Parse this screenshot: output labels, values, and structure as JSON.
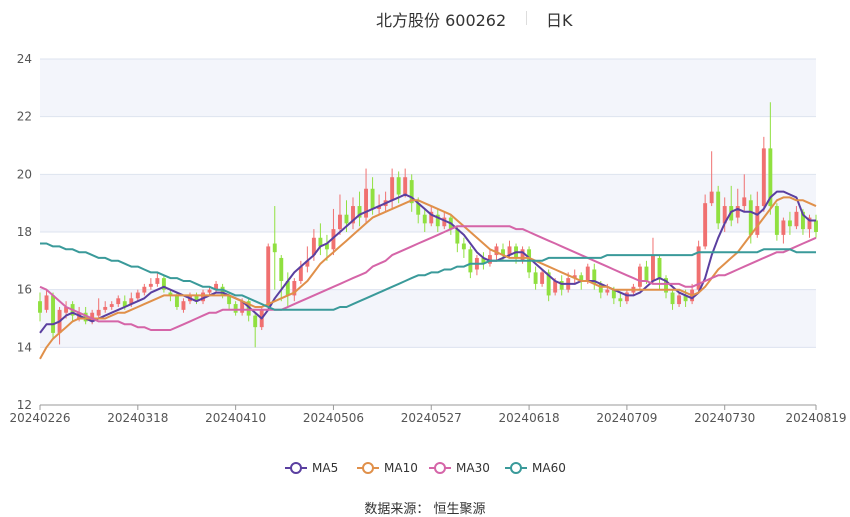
{
  "header": {
    "title": "北方股份 600262",
    "period": "日K"
  },
  "source_text": "数据来源：  恒生聚源",
  "colors": {
    "up": "#f07070",
    "down": "#90e040",
    "MA5": "#5a3fa0",
    "MA10": "#e0904a",
    "MA30": "#d565a8",
    "MA60": "#3a9a9a",
    "plot_band": "#f3f5fb",
    "grid": "#dde3ef"
  },
  "chart_data": {
    "type": "candlestick",
    "title": "北方股份 600262",
    "period": "日K",
    "ylim": [
      12,
      24
    ],
    "yticks": [
      "12",
      "14",
      "16",
      "18",
      "20",
      "22",
      "24"
    ],
    "xticks": [
      {
        "index": 0,
        "label": "20240226"
      },
      {
        "index": 15,
        "label": "20240318"
      },
      {
        "index": 30,
        "label": "20240410"
      },
      {
        "index": 45,
        "label": "20240506"
      },
      {
        "index": 60,
        "label": "20240527"
      },
      {
        "index": 75,
        "label": "20240618"
      },
      {
        "index": 90,
        "label": "20240709"
      },
      {
        "index": 105,
        "label": "20240730"
      },
      {
        "index": 119,
        "label": "20240819"
      }
    ],
    "candles": [
      [
        15.6,
        15.2,
        15.9,
        14.9
      ],
      [
        15.3,
        15.8,
        16.0,
        15.2
      ],
      [
        15.8,
        14.5,
        15.9,
        14.3
      ],
      [
        14.5,
        15.3,
        15.4,
        14.1
      ],
      [
        15.2,
        15.4,
        15.6,
        15.0
      ],
      [
        15.5,
        15.1,
        15.6,
        14.9
      ],
      [
        15.0,
        15.2,
        15.4,
        14.9
      ],
      [
        15.2,
        14.9,
        15.4,
        14.8
      ],
      [
        14.9,
        15.2,
        15.3,
        14.8
      ],
      [
        15.1,
        15.3,
        15.7,
        15.0
      ],
      [
        15.3,
        15.4,
        15.6,
        15.2
      ],
      [
        15.4,
        15.5,
        15.6,
        15.3
      ],
      [
        15.5,
        15.7,
        15.8,
        15.4
      ],
      [
        15.6,
        15.4,
        15.8,
        15.3
      ],
      [
        15.5,
        15.7,
        15.9,
        15.4
      ],
      [
        15.7,
        15.9,
        16.0,
        15.6
      ],
      [
        15.9,
        16.1,
        16.2,
        15.8
      ],
      [
        16.1,
        16.2,
        16.4,
        16.0
      ],
      [
        16.2,
        16.4,
        16.6,
        16.1
      ],
      [
        16.4,
        16.0,
        16.5,
        15.9
      ],
      [
        15.9,
        15.8,
        16.0,
        15.6
      ],
      [
        15.8,
        15.4,
        15.9,
        15.3
      ],
      [
        15.3,
        15.6,
        15.7,
        15.2
      ],
      [
        15.6,
        15.8,
        15.9,
        15.5
      ],
      [
        15.8,
        15.6,
        15.9,
        15.5
      ],
      [
        15.6,
        15.9,
        16.0,
        15.5
      ],
      [
        15.9,
        16.0,
        16.1,
        15.8
      ],
      [
        16.0,
        16.2,
        16.3,
        15.9
      ],
      [
        16.1,
        15.8,
        16.2,
        15.7
      ],
      [
        15.8,
        15.5,
        15.9,
        15.3
      ],
      [
        15.5,
        15.2,
        15.6,
        15.1
      ],
      [
        15.2,
        15.6,
        15.7,
        15.1
      ],
      [
        15.6,
        15.1,
        15.7,
        14.9
      ],
      [
        15.1,
        14.7,
        15.2,
        14.0
      ],
      [
        14.7,
        15.3,
        15.4,
        14.6
      ],
      [
        15.4,
        17.5,
        17.6,
        15.3
      ],
      [
        17.6,
        17.3,
        18.9,
        16.0
      ],
      [
        17.1,
        16.3,
        17.2,
        15.6
      ],
      [
        16.3,
        15.8,
        16.6,
        15.4
      ],
      [
        15.8,
        16.3,
        16.4,
        15.6
      ],
      [
        16.3,
        16.8,
        17.0,
        16.2
      ],
      [
        16.8,
        17.0,
        17.5,
        16.6
      ],
      [
        17.2,
        17.8,
        18.1,
        17.0
      ],
      [
        17.8,
        17.5,
        18.3,
        17.2
      ],
      [
        17.6,
        17.4,
        17.9,
        17.0
      ],
      [
        17.4,
        18.1,
        18.8,
        17.2
      ],
      [
        18.1,
        18.6,
        19.3,
        17.9
      ],
      [
        18.6,
        18.3,
        19.1,
        18.0
      ],
      [
        18.3,
        18.9,
        19.2,
        18.1
      ],
      [
        18.9,
        18.5,
        19.4,
        18.2
      ],
      [
        18.5,
        19.5,
        20.2,
        18.3
      ],
      [
        19.5,
        18.8,
        19.9,
        18.6
      ],
      [
        18.8,
        18.9,
        19.3,
        18.6
      ],
      [
        18.9,
        19.1,
        19.4,
        18.7
      ],
      [
        19.1,
        19.9,
        20.2,
        18.8
      ],
      [
        19.9,
        19.3,
        20.1,
        19.0
      ],
      [
        19.3,
        19.9,
        20.2,
        19.2
      ],
      [
        19.8,
        19.0,
        20.0,
        18.7
      ],
      [
        19.0,
        18.6,
        19.2,
        18.3
      ],
      [
        18.6,
        18.3,
        18.8,
        18.0
      ],
      [
        18.3,
        18.7,
        18.9,
        18.2
      ],
      [
        18.6,
        18.2,
        18.8,
        18.0
      ],
      [
        18.2,
        18.5,
        18.7,
        18.1
      ],
      [
        18.5,
        18.1,
        18.6,
        17.9
      ],
      [
        18.1,
        17.6,
        18.2,
        17.3
      ],
      [
        17.6,
        17.4,
        17.8,
        17.1
      ],
      [
        17.4,
        16.6,
        17.5,
        16.4
      ],
      [
        16.7,
        17.1,
        17.2,
        16.5
      ],
      [
        17.1,
        16.9,
        17.3,
        16.7
      ],
      [
        16.9,
        17.2,
        17.4,
        16.8
      ],
      [
        17.2,
        17.5,
        17.6,
        17.0
      ],
      [
        17.4,
        17.2,
        17.6,
        17.0
      ],
      [
        17.2,
        17.5,
        17.7,
        17.1
      ],
      [
        17.5,
        17.1,
        17.6,
        16.9
      ],
      [
        17.0,
        17.4,
        17.5,
        16.9
      ],
      [
        17.4,
        16.6,
        17.5,
        16.4
      ],
      [
        16.6,
        16.2,
        16.8,
        16.0
      ],
      [
        16.2,
        16.6,
        16.7,
        16.1
      ],
      [
        16.6,
        15.8,
        16.7,
        15.6
      ],
      [
        15.9,
        16.3,
        16.4,
        15.8
      ],
      [
        16.3,
        16.0,
        16.5,
        15.8
      ],
      [
        16.0,
        16.4,
        16.6,
        15.9
      ],
      [
        16.4,
        16.5,
        16.7,
        16.2
      ],
      [
        16.5,
        16.3,
        16.6,
        16.0
      ],
      [
        16.3,
        16.8,
        16.9,
        16.2
      ],
      [
        16.7,
        16.2,
        16.9,
        16.0
      ],
      [
        16.2,
        15.9,
        16.3,
        15.7
      ],
      [
        15.9,
        16.0,
        16.2,
        15.8
      ],
      [
        16.0,
        15.7,
        16.1,
        15.5
      ],
      [
        15.7,
        15.6,
        15.9,
        15.4
      ],
      [
        15.6,
        15.9,
        16.0,
        15.5
      ],
      [
        15.9,
        16.1,
        16.2,
        15.8
      ],
      [
        16.1,
        16.8,
        16.9,
        16.0
      ],
      [
        16.8,
        16.3,
        17.0,
        16.2
      ],
      [
        16.3,
        17.2,
        17.8,
        16.2
      ],
      [
        17.1,
        16.4,
        17.2,
        16.0
      ],
      [
        16.4,
        15.9,
        16.5,
        15.7
      ],
      [
        15.9,
        15.5,
        16.0,
        15.3
      ],
      [
        15.5,
        15.8,
        15.9,
        15.4
      ],
      [
        15.8,
        15.6,
        16.0,
        15.4
      ],
      [
        15.6,
        16.0,
        16.2,
        15.5
      ],
      [
        16.0,
        17.5,
        17.7,
        15.9
      ],
      [
        17.5,
        19.0,
        19.3,
        17.4
      ],
      [
        19.0,
        19.4,
        20.8,
        18.9
      ],
      [
        19.4,
        18.3,
        19.6,
        18.1
      ],
      [
        18.3,
        18.9,
        19.2,
        18.0
      ],
      [
        18.9,
        18.4,
        19.6,
        18.2
      ],
      [
        18.5,
        18.9,
        19.5,
        18.3
      ],
      [
        18.9,
        19.2,
        20.0,
        18.7
      ],
      [
        19.1,
        17.9,
        19.3,
        17.6
      ],
      [
        17.9,
        18.9,
        19.4,
        17.8
      ],
      [
        18.9,
        20.9,
        21.3,
        18.7
      ],
      [
        20.9,
        18.9,
        22.5,
        18.6
      ],
      [
        18.9,
        17.9,
        19.0,
        17.7
      ],
      [
        17.9,
        18.4,
        18.5,
        17.6
      ],
      [
        18.4,
        18.2,
        18.7,
        17.9
      ],
      [
        18.2,
        18.7,
        18.9,
        18.1
      ],
      [
        18.7,
        18.1,
        18.8,
        17.9
      ],
      [
        18.1,
        18.5,
        18.6,
        17.8
      ],
      [
        18.4,
        18.0,
        18.6,
        17.8
      ]
    ],
    "series": [
      {
        "name": "MA5",
        "values": [
          14.5,
          14.8,
          14.8,
          14.9,
          15.1,
          15.2,
          15.1,
          15.0,
          14.9,
          15.0,
          15.1,
          15.2,
          15.3,
          15.4,
          15.5,
          15.6,
          15.7,
          15.9,
          16.0,
          16.1,
          16.0,
          15.9,
          15.8,
          15.7,
          15.6,
          15.7,
          15.8,
          15.9,
          15.9,
          15.8,
          15.7,
          15.6,
          15.4,
          15.2,
          15.0,
          15.3,
          15.7,
          16.0,
          16.3,
          16.6,
          16.8,
          17.0,
          17.2,
          17.5,
          17.6,
          17.8,
          18.0,
          18.2,
          18.4,
          18.6,
          18.7,
          18.8,
          18.9,
          19.0,
          19.1,
          19.2,
          19.3,
          19.2,
          19.0,
          18.8,
          18.6,
          18.5,
          18.4,
          18.3,
          18.1,
          17.9,
          17.6,
          17.3,
          17.1,
          17.0,
          17.0,
          17.1,
          17.2,
          17.3,
          17.3,
          17.1,
          16.9,
          16.7,
          16.5,
          16.3,
          16.2,
          16.2,
          16.2,
          16.3,
          16.3,
          16.3,
          16.2,
          16.1,
          16.0,
          15.9,
          15.8,
          15.8,
          15.9,
          16.1,
          16.3,
          16.4,
          16.3,
          16.1,
          15.9,
          15.8,
          15.7,
          15.9,
          16.4,
          17.2,
          17.8,
          18.3,
          18.7,
          18.8,
          18.7,
          18.7,
          18.6,
          18.8,
          19.2,
          19.4,
          19.4,
          19.3,
          19.2,
          18.6,
          18.4,
          18.4
        ]
      },
      {
        "name": "MA10",
        "values": [
          13.6,
          14.0,
          14.3,
          14.5,
          14.7,
          14.9,
          15.0,
          15.0,
          15.0,
          15.0,
          15.0,
          15.1,
          15.2,
          15.2,
          15.3,
          15.4,
          15.5,
          15.6,
          15.7,
          15.8,
          15.8,
          15.8,
          15.8,
          15.8,
          15.8,
          15.8,
          15.8,
          15.8,
          15.8,
          15.8,
          15.7,
          15.6,
          15.5,
          15.4,
          15.4,
          15.5,
          15.6,
          15.7,
          15.8,
          15.9,
          16.1,
          16.3,
          16.6,
          16.9,
          17.1,
          17.3,
          17.5,
          17.7,
          17.9,
          18.1,
          18.3,
          18.5,
          18.6,
          18.7,
          18.8,
          18.9,
          19.0,
          19.1,
          19.1,
          19.0,
          18.9,
          18.8,
          18.7,
          18.6,
          18.4,
          18.2,
          18.0,
          17.8,
          17.6,
          17.4,
          17.3,
          17.2,
          17.1,
          17.1,
          17.1,
          17.1,
          17.0,
          16.9,
          16.8,
          16.7,
          16.6,
          16.5,
          16.4,
          16.3,
          16.3,
          16.2,
          16.1,
          16.1,
          16.0,
          16.0,
          16.0,
          16.0,
          16.0,
          16.0,
          16.0,
          16.0,
          16.0,
          16.0,
          16.0,
          15.9,
          15.8,
          15.9,
          16.1,
          16.4,
          16.7,
          16.9,
          17.1,
          17.3,
          17.6,
          17.9,
          18.2,
          18.5,
          18.8,
          19.1,
          19.2,
          19.2,
          19.1,
          19.1,
          19.0,
          18.9
        ]
      },
      {
        "name": "MA30",
        "values": [
          16.1,
          16.0,
          15.8,
          15.6,
          15.4,
          15.3,
          15.2,
          15.1,
          15.0,
          14.9,
          14.9,
          14.9,
          14.9,
          14.8,
          14.8,
          14.7,
          14.7,
          14.6,
          14.6,
          14.6,
          14.6,
          14.7,
          14.8,
          14.9,
          15.0,
          15.1,
          15.2,
          15.2,
          15.3,
          15.3,
          15.3,
          15.3,
          15.3,
          15.3,
          15.3,
          15.3,
          15.3,
          15.3,
          15.4,
          15.5,
          15.6,
          15.7,
          15.8,
          15.9,
          16.0,
          16.1,
          16.2,
          16.3,
          16.4,
          16.5,
          16.6,
          16.8,
          16.9,
          17.0,
          17.2,
          17.3,
          17.4,
          17.5,
          17.6,
          17.7,
          17.8,
          17.9,
          18.0,
          18.1,
          18.2,
          18.2,
          18.2,
          18.2,
          18.2,
          18.2,
          18.2,
          18.2,
          18.2,
          18.1,
          18.1,
          18.0,
          17.9,
          17.8,
          17.7,
          17.6,
          17.5,
          17.4,
          17.3,
          17.2,
          17.1,
          17.0,
          16.9,
          16.8,
          16.7,
          16.6,
          16.5,
          16.4,
          16.3,
          16.3,
          16.2,
          16.2,
          16.2,
          16.2,
          16.2,
          16.1,
          16.1,
          16.2,
          16.3,
          16.4,
          16.5,
          16.5,
          16.6,
          16.7,
          16.8,
          16.9,
          17.0,
          17.1,
          17.2,
          17.3,
          17.3,
          17.4,
          17.5,
          17.6,
          17.7,
          17.8
        ]
      },
      {
        "name": "MA60",
        "values": [
          17.6,
          17.6,
          17.5,
          17.5,
          17.4,
          17.4,
          17.3,
          17.3,
          17.2,
          17.1,
          17.1,
          17.0,
          17.0,
          16.9,
          16.8,
          16.8,
          16.7,
          16.6,
          16.6,
          16.5,
          16.4,
          16.4,
          16.3,
          16.3,
          16.2,
          16.1,
          16.1,
          16.0,
          16.0,
          15.9,
          15.8,
          15.8,
          15.7,
          15.6,
          15.5,
          15.4,
          15.3,
          15.3,
          15.3,
          15.3,
          15.3,
          15.3,
          15.3,
          15.3,
          15.3,
          15.3,
          15.4,
          15.4,
          15.5,
          15.6,
          15.7,
          15.8,
          15.9,
          16.0,
          16.1,
          16.2,
          16.3,
          16.4,
          16.5,
          16.5,
          16.6,
          16.6,
          16.7,
          16.7,
          16.8,
          16.8,
          16.9,
          16.9,
          16.9,
          17.0,
          17.0,
          17.0,
          17.0,
          17.0,
          17.0,
          17.0,
          17.0,
          17.0,
          17.1,
          17.1,
          17.1,
          17.1,
          17.1,
          17.1,
          17.1,
          17.1,
          17.1,
          17.2,
          17.2,
          17.2,
          17.2,
          17.2,
          17.2,
          17.2,
          17.2,
          17.2,
          17.2,
          17.2,
          17.2,
          17.2,
          17.2,
          17.3,
          17.3,
          17.3,
          17.3,
          17.3,
          17.3,
          17.3,
          17.3,
          17.3,
          17.3,
          17.4,
          17.4,
          17.4,
          17.4,
          17.4,
          17.3,
          17.3,
          17.3,
          17.3
        ]
      }
    ]
  }
}
